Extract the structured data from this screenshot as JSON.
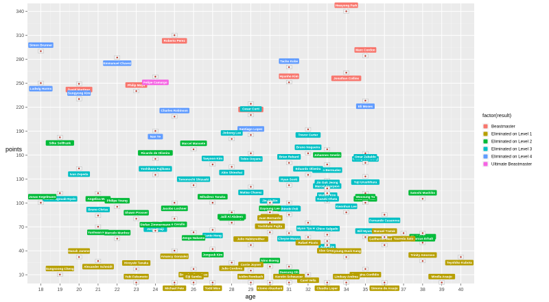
{
  "chart_data": {
    "type": "scatter",
    "title": "",
    "xlabel": "age",
    "ylabel": "points",
    "xlim": [
      17.3,
      40.7
    ],
    "ylim": [
      -1,
      350
    ],
    "x_ticks": [
      18,
      19,
      20,
      21,
      22,
      23,
      24,
      25,
      26,
      27,
      28,
      29,
      30,
      31,
      32,
      33,
      34,
      35,
      36,
      37,
      38,
      39,
      40
    ],
    "y_ticks": [
      10,
      40,
      70,
      100,
      130,
      160,
      190,
      220,
      250,
      280,
      310,
      340
    ],
    "grid": true,
    "legend": {
      "title": "factor(result)",
      "position": "right",
      "entries": [
        {
          "name": "Beastmaster",
          "color": "#F8766D"
        },
        {
          "name": "Eliminated on Level 1",
          "color": "#B79F00"
        },
        {
          "name": "Eliminated on Level 2",
          "color": "#00BA38"
        },
        {
          "name": "Eliminated on Level 3",
          "color": "#00BFC4"
        },
        {
          "name": "Eliminated on Level 4",
          "color": "#619CFF"
        },
        {
          "name": "Ultimate Beastmaster",
          "color": "#F564E3"
        }
      ]
    },
    "points": [
      {
        "name": "Hwayong Park",
        "x": 34,
        "y": 340,
        "result": "Beastmaster"
      },
      {
        "name": "Roberto Perez",
        "x": 25,
        "y": 310,
        "result": "Beastmaster"
      },
      {
        "name": "Marc Cordon",
        "x": 35,
        "y": 284,
        "result": "Beastmaster"
      },
      {
        "name": "Jonathan Collins",
        "x": 34,
        "y": 263,
        "result": "Beastmaster"
      },
      {
        "name": "Hyunho Kim",
        "x": 31,
        "y": 251,
        "result": "Beastmaster"
      },
      {
        "name": "David Martinez",
        "x": 20,
        "y": 249,
        "result": "Beastmaster"
      },
      {
        "name": "Philip Maya",
        "x": 23,
        "y": 240,
        "result": "Beastmaster"
      },
      {
        "name": "Steven Tucker",
        "x": 29,
        "y": 224,
        "result": "Beastmaster"
      },
      {
        "name": "Simon Brunner",
        "x": 18,
        "y": 290,
        "result": "Eliminated on Level 4"
      },
      {
        "name": "Emmanuel Chavez",
        "x": 22,
        "y": 282,
        "result": "Eliminated on Level 4"
      },
      {
        "name": "Tacho Kobe",
        "x": 31,
        "y": 270,
        "result": "Eliminated on Level 4"
      },
      {
        "name": "Ludwig Harms",
        "x": 18,
        "y": 250,
        "result": "Eliminated on Level 4"
      },
      {
        "name": "Sungyong Kim",
        "x": 20,
        "y": 230,
        "result": "Eliminated on Level 4"
      },
      {
        "name": "Eli Moses",
        "x": 35,
        "y": 228,
        "result": "Eliminated on Level 4"
      },
      {
        "name": "Charles Robinson",
        "x": 25,
        "y": 208,
        "result": "Eliminated on Level 4"
      },
      {
        "name": "Nan Ye",
        "x": 24,
        "y": 190,
        "result": "Eliminated on Level 4"
      },
      {
        "name": "Santiago Lopez",
        "x": 29,
        "y": 185,
        "result": "Eliminated on Level 4"
      },
      {
        "name": "Felipe Camargo",
        "x": 24,
        "y": 258,
        "result": "Ultimate Beastmaster"
      },
      {
        "name": "Cesar Curti",
        "x": 29,
        "y": 210,
        "result": "Eliminated on Level 3"
      },
      {
        "name": "Trevor Carter",
        "x": 32,
        "y": 192,
        "result": "Eliminated on Level 3"
      },
      {
        "name": "Jinbong Lee",
        "x": 28,
        "y": 180,
        "result": "Eliminated on Level 3"
      },
      {
        "name": "Tobio Ooyanu",
        "x": 29,
        "y": 162,
        "result": "Eliminated on Level 3"
      },
      {
        "name": "Bruno Nogueira",
        "x": 32,
        "y": 162,
        "result": "Eliminated on Level 3"
      },
      {
        "name": "Chang Suk Bang",
        "x": 35,
        "y": 162,
        "result": "Eliminated on Level 3"
      },
      {
        "name": "Taeyoon Kim",
        "x": 27,
        "y": 148,
        "result": "Eliminated on Level 3"
      },
      {
        "name": "Akio Shinohai",
        "x": 28,
        "y": 145,
        "result": "Eliminated on Level 3"
      },
      {
        "name": "Brian Rebard",
        "x": 31,
        "y": 150,
        "result": "Eliminated on Level 3"
      },
      {
        "name": "Alfredo Bermudez",
        "x": 33,
        "y": 148,
        "result": "Eliminated on Level 3"
      },
      {
        "name": "Omar Zabaldo",
        "x": 35,
        "y": 150,
        "result": "Eliminated on Level 3"
      },
      {
        "name": "Ivan Zepeda",
        "x": 20,
        "y": 143,
        "result": "Eliminated on Level 3"
      },
      {
        "name": "Yoshikazu Fujikawa",
        "x": 24,
        "y": 135,
        "result": "Eliminated on Level 3"
      },
      {
        "name": "Yuji Urushihara",
        "x": 35,
        "y": 133,
        "result": "Eliminated on Level 3"
      },
      {
        "name": "Eduardo Oliveira",
        "x": 32,
        "y": 135,
        "result": "Eliminated on Level 3"
      },
      {
        "name": "Marcel Scorpion",
        "x": 33,
        "y": 128,
        "result": "Eliminated on Level 3"
      },
      {
        "name": "Tomonochi Shizuaki",
        "x": 26,
        "y": 122,
        "result": "Eliminated on Level 3"
      },
      {
        "name": "Matias Chavez",
        "x": 29,
        "y": 120,
        "result": "Eliminated on Level 3"
      },
      {
        "name": "Hyan Scott",
        "x": 31,
        "y": 122,
        "result": "Eliminated on Level 3"
      },
      {
        "name": "Adrian Ngouab-Nyalo",
        "x": 19,
        "y": 112,
        "result": "Eliminated on Level 3"
      },
      {
        "name": "Jin Guk Jeong",
        "x": 33,
        "y": 118,
        "result": "Eliminated on Level 3"
      },
      {
        "name": "Adrian Reys",
        "x": 31,
        "y": 100,
        "result": "Eliminated on Level 3"
      },
      {
        "name": "Wataru Kim",
        "x": 33,
        "y": 102,
        "result": "Eliminated on Level 3"
      },
      {
        "name": "Kazuki Ohata",
        "x": 33,
        "y": 112,
        "result": "Eliminated on Level 3"
      },
      {
        "name": "Shinobi Poli",
        "x": 31,
        "y": 85,
        "result": "Eliminated on Level 3"
      },
      {
        "name": "Myon Tyu Huh",
        "x": 32,
        "y": 75,
        "result": "Eliminated on Level 3"
      },
      {
        "name": "Kwonhun Lee",
        "x": 34,
        "y": 88,
        "result": "Eliminated on Level 3"
      },
      {
        "name": "Fernando Casanova",
        "x": 36,
        "y": 85,
        "result": "Eliminated on Level 3"
      },
      {
        "name": "Jin Ah Bin",
        "x": 30,
        "y": 95,
        "result": "Eliminated on Level 3"
      },
      {
        "name": "Jorge Fraiji",
        "x": 24,
        "y": 74,
        "result": "Eliminated on Level 3"
      },
      {
        "name": "Bruno Chriss",
        "x": 21,
        "y": 84,
        "result": "Eliminated on Level 3"
      },
      {
        "name": "Kunio Hong",
        "x": 27,
        "y": 66,
        "result": "Eliminated on Level 3"
      },
      {
        "name": "Chico Salgado",
        "x": 33,
        "y": 60,
        "result": "Eliminated on Level 3"
      },
      {
        "name": "Jung Kim",
        "x": 33,
        "y": 52,
        "result": "Eliminated on Level 3"
      },
      {
        "name": "Bill Myung",
        "x": 35,
        "y": 57,
        "result": "Eliminated on Level 3"
      },
      {
        "name": "Cheyne Masay",
        "x": 31,
        "y": 62,
        "result": "Eliminated on Level 3"
      },
      {
        "name": "Satoshi Mashiko",
        "x": 38,
        "y": 105,
        "result": "Eliminated on Level 2"
      },
      {
        "name": "Silke Sollfrank",
        "x": 19,
        "y": 182,
        "result": "Eliminated on Level 2"
      },
      {
        "name": "Marcel Mansete",
        "x": 26,
        "y": 167,
        "result": "Eliminated on Level 2"
      },
      {
        "name": "Johannes Gmelin",
        "x": 33,
        "y": 167,
        "result": "Eliminated on Level 2"
      },
      {
        "name": "Ricardo de Oliveira",
        "x": 24,
        "y": 155,
        "result": "Eliminated on Level 2"
      },
      {
        "name": "Angelica Mata",
        "x": 21,
        "y": 112,
        "result": "Eliminated on Level 2"
      },
      {
        "name": "Jonas Kegelmann",
        "x": 18,
        "y": 100,
        "result": "Eliminated on Level 2"
      },
      {
        "name": "Mauricio Kim",
        "x": 35,
        "y": 112,
        "result": "Eliminated on Level 2"
      },
      {
        "name": "Woosung Yu",
        "x": 35,
        "y": 100,
        "result": "Eliminated on Level 2"
      },
      {
        "name": "Jacobo Lochner",
        "x": 25,
        "y": 100,
        "result": "Eliminated on Level 2"
      },
      {
        "name": "Mihailevz Tanaka",
        "x": 27,
        "y": 100,
        "result": "Eliminated on Level 2"
      },
      {
        "name": "Dayoung Lee",
        "x": 30,
        "y": 100,
        "result": "Eliminated on Level 2"
      },
      {
        "name": "Philipe Young",
        "x": 22,
        "y": 95,
        "result": "Eliminated on Level 2"
      },
      {
        "name": "Joel Pusitsky",
        "x": 28,
        "y": 88,
        "result": "Eliminated on Level 2"
      },
      {
        "name": "Shawn Prosser",
        "x": 23,
        "y": 80,
        "result": "Eliminated on Level 2"
      },
      {
        "name": "Marco Cerullo",
        "x": 25,
        "y": 80,
        "result": "Eliminated on Level 2"
      },
      {
        "name": "Jalil Al Abdeen",
        "x": 28,
        "y": 75,
        "result": "Eliminated on Level 2"
      },
      {
        "name": "Yunhwan Kim",
        "x": 21,
        "y": 70,
        "result": "Eliminated on Level 2"
      },
      {
        "name": "Stefan Zimmermann",
        "x": 24,
        "y": 65,
        "result": "Eliminated on Level 2"
      },
      {
        "name": "Zengo Nakamo",
        "x": 26,
        "y": 63,
        "result": "Eliminated on Level 2"
      },
      {
        "name": "Marcelo Munhoz",
        "x": 22,
        "y": 55,
        "result": "Eliminated on Level 2"
      },
      {
        "name": "Jongsuk Kim",
        "x": 27,
        "y": 42,
        "result": "Eliminated on Level 2"
      },
      {
        "name": "Nino Boeng",
        "x": 30,
        "y": 20,
        "result": "Eliminated on Level 2"
      },
      {
        "name": "Daesung Oh",
        "x": 31,
        "y": 20,
        "result": "Eliminated on Level 2"
      },
      {
        "name": "Shoji Nakayama",
        "x": 38,
        "y": 50,
        "result": "Eliminated on Level 2"
      },
      {
        "name": "Marcus Erhalt",
        "x": 38,
        "y": 62,
        "result": "Eliminated on Level 2"
      },
      {
        "name": "Akura Kim",
        "x": 30,
        "y": 75,
        "result": "Eliminated on Level 1"
      },
      {
        "name": "Juan Bernardo",
        "x": 30,
        "y": 88,
        "result": "Eliminated on Level 1"
      },
      {
        "name": "Yoshifumi Fujita",
        "x": 30,
        "y": 63,
        "result": "Eliminated on Level 1"
      },
      {
        "name": "Rafael Picolo",
        "x": 32,
        "y": 57,
        "result": "Eliminated on Level 1"
      },
      {
        "name": "Julio Habitzreither",
        "x": 29,
        "y": 47,
        "result": "Eliminated on Level 1"
      },
      {
        "name": "Alex Green",
        "x": 33,
        "y": 47,
        "result": "Eliminated on Level 1"
      },
      {
        "name": "Guilherme Medeiros",
        "x": 36,
        "y": 47,
        "result": "Eliminated on Level 1"
      },
      {
        "name": "Taureda Sato",
        "x": 37,
        "y": 62,
        "result": "Eliminated on Level 1"
      },
      {
        "name": "Manuel Tzatak",
        "x": 36,
        "y": 57,
        "result": "Eliminated on Level 1"
      },
      {
        "name": "Amancy Gonzalez",
        "x": 25,
        "y": 40,
        "result": "Eliminated on Level 1"
      },
      {
        "name": "Hanah Jamme",
        "x": 20,
        "y": 32,
        "result": "Eliminated on Level 1"
      },
      {
        "name": "Alexander Schmidt",
        "x": 21,
        "y": 27,
        "result": "Eliminated on Level 1"
      },
      {
        "name": "Kyoung Duck Kang",
        "x": 34,
        "y": 32,
        "result": "Eliminated on Level 1"
      },
      {
        "name": "Julio Cordova",
        "x": 28,
        "y": 25,
        "result": "Eliminated on Level 1"
      },
      {
        "name": "Trinity Amoroso",
        "x": 38,
        "y": 27,
        "result": "Eliminated on Level 1"
      },
      {
        "name": "Teynhiko Kubota",
        "x": 40,
        "y": 32,
        "result": "Eliminated on Level 1"
      },
      {
        "name": "Hiroyuki Tanaka",
        "x": 23,
        "y": 17,
        "result": "Eliminated on Level 1"
      },
      {
        "name": "Brandon Douglass",
        "x": 26,
        "y": 17,
        "result": "Eliminated on Level 1"
      },
      {
        "name": "Corrie Joyner",
        "x": 29,
        "y": 15,
        "result": "Eliminated on Level 1"
      },
      {
        "name": "Georgina Confidio",
        "x": 35,
        "y": 17,
        "result": "Eliminated on Level 1"
      },
      {
        "name": "Sungsoong Cheng",
        "x": 19,
        "y": 10,
        "result": "Eliminated on Level 1"
      },
      {
        "name": "Carel Vella",
        "x": 32,
        "y": 10,
        "result": "Eliminated on Level 1"
      },
      {
        "name": "Yuki Fukumoto",
        "x": 23,
        "y": 0,
        "result": "Eliminated on Level 1"
      },
      {
        "name": "Michael Pete",
        "x": 25,
        "y": 0,
        "result": "Eliminated on Level 1"
      },
      {
        "name": "Eiji Samba",
        "x": 26,
        "y": 0,
        "result": "Eliminated on Level 1"
      },
      {
        "name": "Todd Mice",
        "x": 27,
        "y": 0,
        "result": "Eliminated on Level 1"
      },
      {
        "name": "Isidim Rombach",
        "x": 29,
        "y": 0,
        "result": "Eliminated on Level 1"
      },
      {
        "name": "Kiomo Akashani",
        "x": 30,
        "y": 0,
        "result": "Eliminated on Level 1"
      },
      {
        "name": "Kerstin Schwarzer",
        "x": 31,
        "y": 0,
        "result": "Eliminated on Level 1"
      },
      {
        "name": "Claudia Loper",
        "x": 33,
        "y": 0,
        "result": "Eliminated on Level 1"
      },
      {
        "name": "Lindsay Andrea",
        "x": 34,
        "y": 0,
        "result": "Eliminated on Level 1"
      },
      {
        "name": "Simone de Araujo",
        "x": 36,
        "y": 0,
        "result": "Eliminated on Level 1"
      },
      {
        "name": "Mirella Araujo",
        "x": 39,
        "y": 0,
        "result": "Eliminated on Level 1"
      }
    ]
  }
}
